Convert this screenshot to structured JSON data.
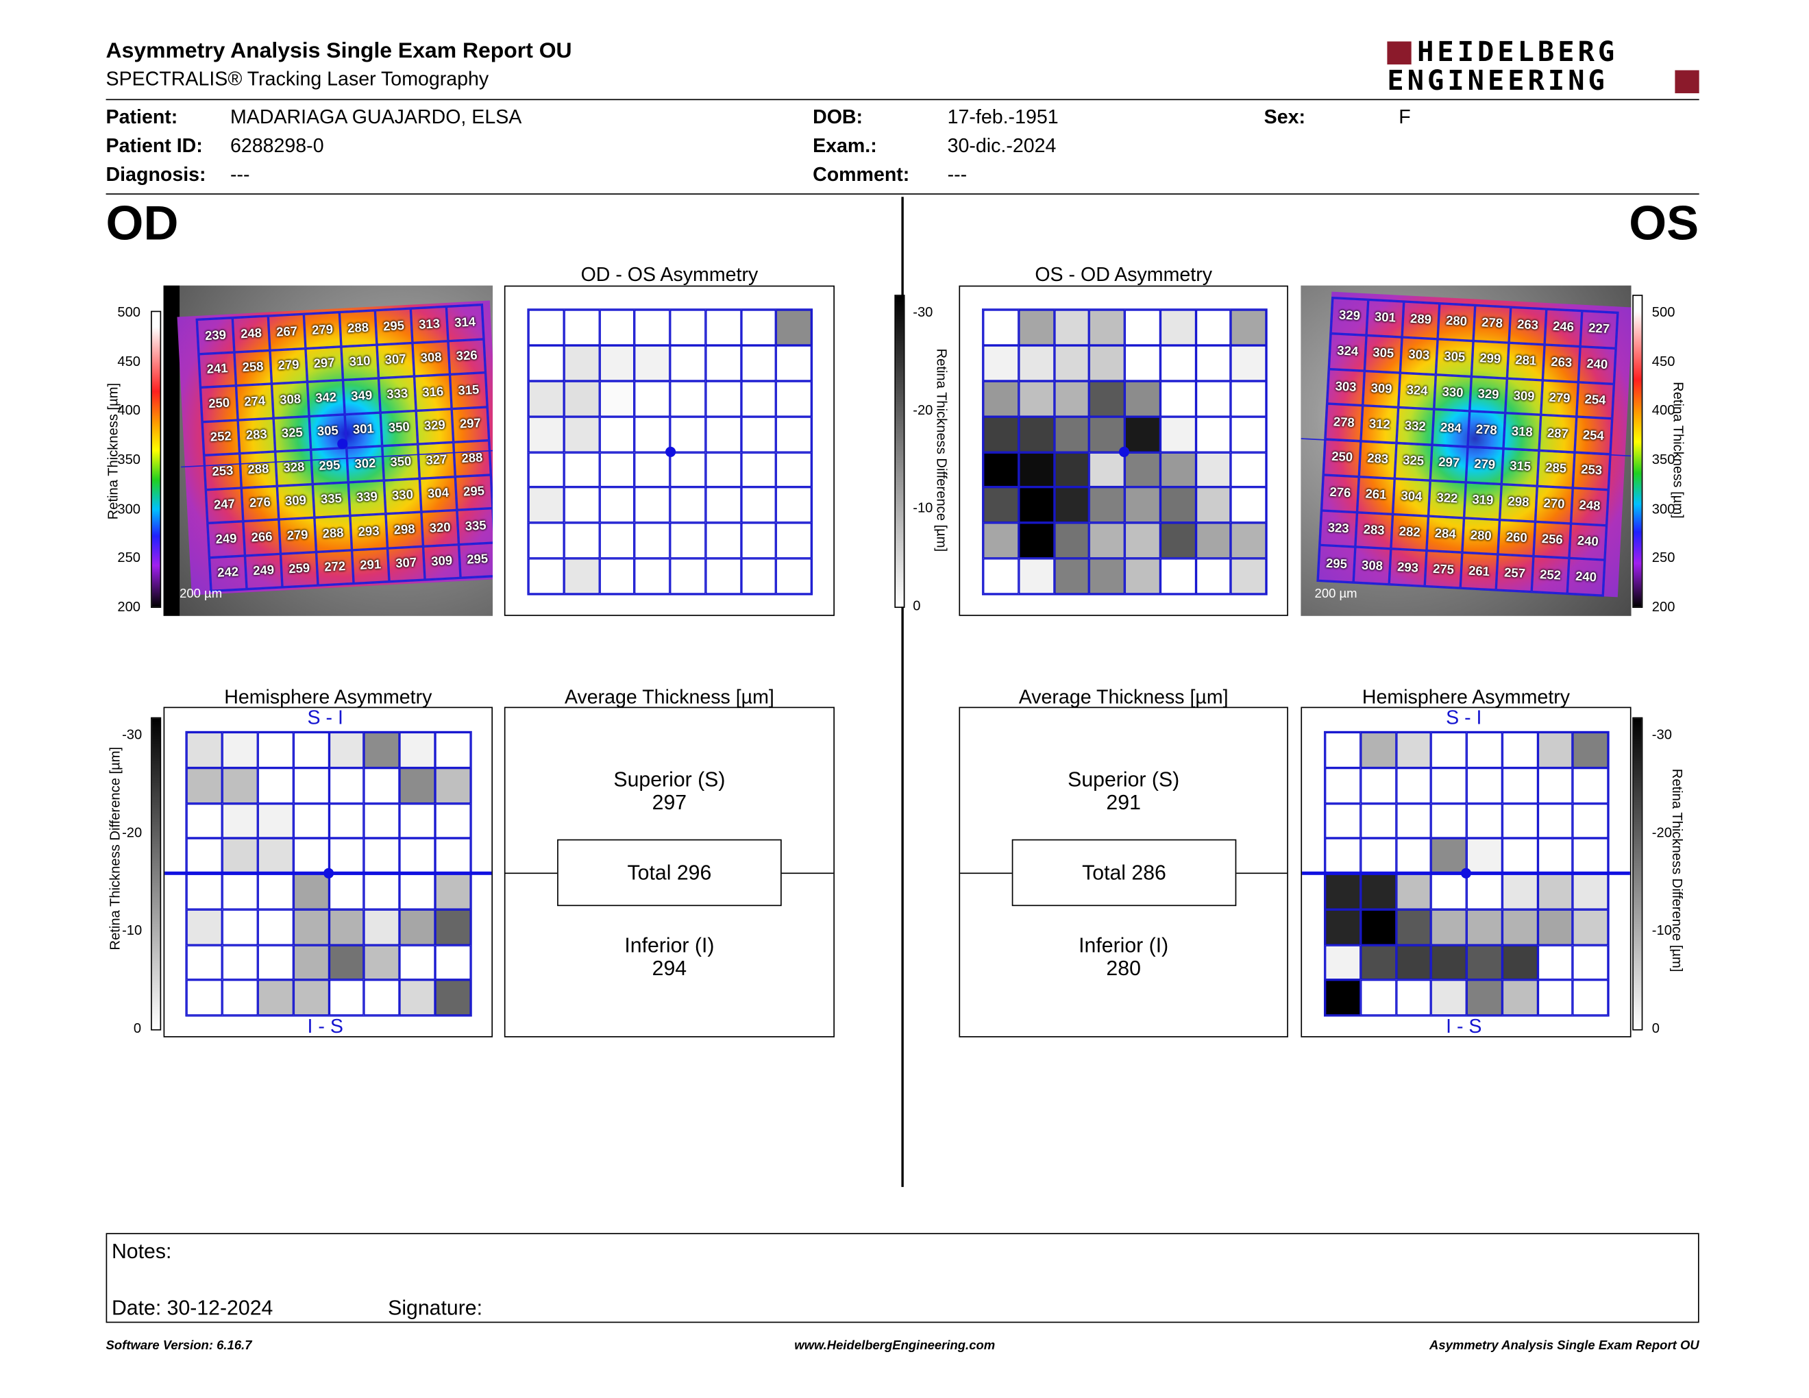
{
  "header": {
    "title": "Asymmetry Analysis Single Exam Report OU",
    "subtitle": "SPECTRALIS® Tracking Laser Tomography",
    "logo_line1": "HEIDELBERG",
    "logo_line2": "ENGINEERING"
  },
  "patient": {
    "patient_label": "Patient:",
    "patient_value": "MADARIAGA GUAJARDO, ELSA",
    "id_label": "Patient ID:",
    "id_value": "6288298-0",
    "diagnosis_label": "Diagnosis:",
    "diagnosis_value": "---",
    "dob_label": "DOB:",
    "dob_value": "17-feb.-1951",
    "exam_label": "Exam.:",
    "exam_value": "30-dic.-2024",
    "comment_label": "Comment:",
    "comment_value": "---",
    "sex_label": "Sex:",
    "sex_value": "F"
  },
  "od": {
    "eye_label": "OD",
    "asym_title": "OD - OS Asymmetry",
    "hemi_title": "Hemisphere Asymmetry",
    "avg_title": "Average Thickness [µm]",
    "scale_bar": "200 µm",
    "thickness": [
      [
        239,
        248,
        267,
        279,
        288,
        295,
        313,
        314
      ],
      [
        241,
        258,
        279,
        297,
        310,
        307,
        308,
        326
      ],
      [
        250,
        274,
        308,
        342,
        349,
        333,
        316,
        315
      ],
      [
        252,
        283,
        325,
        305,
        301,
        350,
        329,
        297
      ],
      [
        253,
        288,
        328,
        295,
        302,
        350,
        327,
        288
      ],
      [
        247,
        276,
        309,
        335,
        339,
        330,
        304,
        295
      ],
      [
        249,
        266,
        279,
        288,
        293,
        298,
        320,
        335
      ],
      [
        242,
        249,
        259,
        272,
        291,
        307,
        309,
        295
      ]
    ],
    "asym_levels": [
      [
        0,
        0,
        0,
        0,
        0,
        0,
        0,
        0.45
      ],
      [
        0,
        0.1,
        0.05,
        0.05,
        0,
        0,
        0,
        0
      ],
      [
        0.1,
        0.12,
        0.02,
        0,
        0,
        0,
        0,
        0
      ],
      [
        0.05,
        0.1,
        0,
        0,
        0,
        0,
        0,
        0
      ],
      [
        0,
        0,
        0,
        0,
        0,
        0,
        0,
        0
      ],
      [
        0.07,
        0,
        0,
        0,
        0,
        0,
        0,
        0
      ],
      [
        0,
        0,
        0,
        0,
        0,
        0,
        0,
        0
      ],
      [
        0,
        0.1,
        0,
        0,
        0,
        0,
        0,
        0
      ]
    ],
    "hemi_levels": [
      [
        0.12,
        0.05,
        0,
        0,
        0.1,
        0.45,
        0.05,
        0
      ],
      [
        0.25,
        0.25,
        0,
        0,
        0,
        0,
        0.45,
        0.25
      ],
      [
        0,
        0.05,
        0.05,
        0,
        0,
        0,
        0,
        0
      ],
      [
        0,
        0.15,
        0.12,
        0,
        0,
        0,
        0,
        0
      ],
      [
        0,
        0,
        0,
        0.35,
        0,
        0,
        0,
        0.25
      ],
      [
        0.1,
        0,
        0,
        0.3,
        0.3,
        0.1,
        0.35,
        0.6
      ],
      [
        0,
        0,
        0,
        0.3,
        0.55,
        0.25,
        0,
        0
      ],
      [
        0,
        0,
        0.25,
        0.25,
        0,
        0,
        0.15,
        0.6
      ]
    ],
    "hemi_top": "S - I",
    "hemi_bottom": "I - S",
    "superior_label": "Superior (S)",
    "superior_value": "297",
    "total_label": "Total 296",
    "inferior_label": "Inferior (I)",
    "inferior_value": "294"
  },
  "os": {
    "eye_label": "OS",
    "asym_title": "OS - OD Asymmetry",
    "hemi_title": "Hemisphere Asymmetry",
    "avg_title": "Average Thickness [µm]",
    "scale_bar": "200 µm",
    "thickness": [
      [
        329,
        301,
        289,
        280,
        278,
        263,
        246,
        227
      ],
      [
        324,
        305,
        303,
        305,
        299,
        281,
        263,
        240
      ],
      [
        303,
        309,
        324,
        330,
        329,
        309,
        279,
        254
      ],
      [
        278,
        312,
        332,
        284,
        278,
        318,
        287,
        254
      ],
      [
        250,
        283,
        325,
        297,
        279,
        315,
        285,
        253
      ],
      [
        276,
        261,
        304,
        322,
        319,
        298,
        270,
        248
      ],
      [
        323,
        283,
        282,
        284,
        280,
        260,
        256,
        240
      ],
      [
        295,
        308,
        293,
        275,
        261,
        257,
        252,
        240
      ]
    ],
    "asym_levels": [
      [
        0,
        0.35,
        0.15,
        0.25,
        0,
        0.1,
        0,
        0.35
      ],
      [
        0.05,
        0.1,
        0.15,
        0.2,
        0,
        0,
        0,
        0.05
      ],
      [
        0.4,
        0.25,
        0.3,
        0.65,
        0.45,
        0,
        0,
        0
      ],
      [
        0.75,
        0.75,
        0.55,
        0.55,
        0.9,
        0.05,
        0,
        0
      ],
      [
        1.0,
        0.95,
        0.8,
        0.15,
        0.5,
        0.4,
        0.1,
        0
      ],
      [
        0.7,
        1.0,
        0.85,
        0.5,
        0.4,
        0.55,
        0.2,
        0
      ],
      [
        0.35,
        1.0,
        0.55,
        0.3,
        0.25,
        0.65,
        0.35,
        0.3
      ],
      [
        0,
        0.05,
        0.5,
        0.45,
        0.25,
        0,
        0,
        0.15
      ]
    ],
    "hemi_levels": [
      [
        0,
        0.3,
        0.15,
        0,
        0,
        0,
        0.2,
        0.5
      ],
      [
        0,
        0,
        0,
        0,
        0,
        0,
        0,
        0
      ],
      [
        0,
        0,
        0,
        0,
        0,
        0,
        0,
        0
      ],
      [
        0,
        0,
        0,
        0.45,
        0.05,
        0,
        0,
        0
      ],
      [
        0.85,
        0.85,
        0.25,
        0,
        0,
        0.1,
        0.2,
        0.1
      ],
      [
        0.85,
        1.0,
        0.65,
        0.3,
        0.3,
        0.3,
        0.35,
        0.2
      ],
      [
        0.05,
        0.7,
        0.75,
        0.75,
        0.65,
        0.75,
        0,
        0
      ],
      [
        1.0,
        0,
        0,
        0.1,
        0.5,
        0.25,
        0,
        0
      ]
    ],
    "hemi_top": "S - I",
    "hemi_bottom": "I - S",
    "superior_label": "Superior (S)",
    "superior_value": "291",
    "total_label": "Total 286",
    "inferior_label": "Inferior (I)",
    "inferior_value": "280"
  },
  "scales": {
    "thickness_label": "Retina Thickness [µm]",
    "thickness_ticks": [
      "500",
      "450",
      "400",
      "350",
      "300",
      "250",
      "200"
    ],
    "diff_label": "Retina Thickness Difference [µm]",
    "diff_ticks": [
      "-30",
      "-20",
      "-10",
      "0"
    ]
  },
  "notes": {
    "notes_label": "Notes:",
    "date_label": "Date: 30-12-2024",
    "signature_label": "Signature:"
  },
  "footer": {
    "software": "Software Version: 6.16.7",
    "website": "www.HeidelbergEngineering.com",
    "report": "Asymmetry Analysis Single Exam Report OU"
  },
  "colors": {
    "grid_blue": "#1515d0",
    "logo_red": "#8b1a2b"
  }
}
